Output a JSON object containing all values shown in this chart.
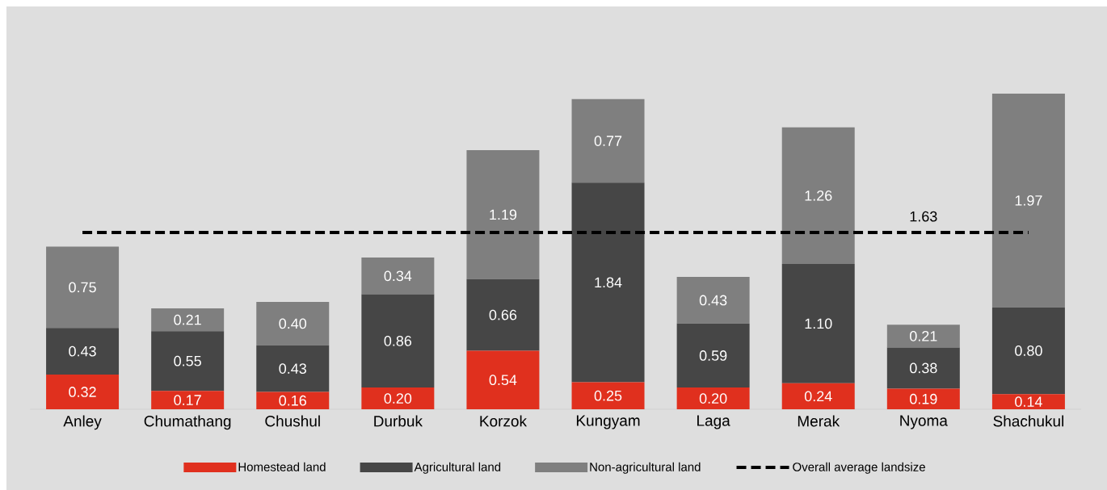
{
  "chart_data": {
    "type": "bar",
    "stacked": true,
    "legend": "bottom",
    "ylim": [
      0,
      3.7
    ],
    "categories": [
      "Anley",
      "Chumathang",
      "Chushul",
      "Durbuk",
      "Korzok",
      "Kungyam",
      "Laga",
      "Merak",
      "Nyoma",
      "Shachukul"
    ],
    "series": [
      {
        "name": "Homestead land",
        "color": "#e0301e",
        "values": [
          0.32,
          0.17,
          0.16,
          0.2,
          0.54,
          0.25,
          0.2,
          0.24,
          0.19,
          0.14
        ],
        "value_labels": [
          "0.32",
          "0.17",
          "0.16",
          "0.20",
          "0.54",
          "0.25",
          "0.20",
          "0.24",
          "0.19",
          "0.14"
        ]
      },
      {
        "name": "Agricultural land",
        "color": "#464646",
        "values": [
          0.43,
          0.55,
          0.43,
          0.86,
          0.66,
          1.84,
          0.59,
          1.1,
          0.38,
          0.8
        ],
        "value_labels": [
          "0.43",
          "0.55",
          "0.43",
          "0.86",
          "0.66",
          "1.84",
          "0.59",
          "1.10",
          "0.38",
          "0.80"
        ]
      },
      {
        "name": "Non-agricultural land",
        "color": "#7f7f7f",
        "values": [
          0.75,
          0.21,
          0.4,
          0.34,
          1.19,
          0.77,
          0.43,
          1.26,
          0.21,
          1.97
        ],
        "value_labels": [
          "0.75",
          "0.21",
          "0.40",
          "0.34",
          "1.19",
          "0.77",
          "0.43",
          "1.26",
          "0.21",
          "1.97"
        ]
      },
      {
        "name": "Overall average landsize",
        "type": "line",
        "color": "#000000",
        "line_style": "dashed",
        "values": [
          1.63,
          1.63,
          1.63,
          1.63,
          1.63,
          1.63,
          1.63,
          1.63,
          1.63,
          1.63
        ],
        "value_labels": [
          null,
          null,
          null,
          null,
          null,
          null,
          null,
          null,
          "1.63",
          null
        ]
      }
    ]
  }
}
